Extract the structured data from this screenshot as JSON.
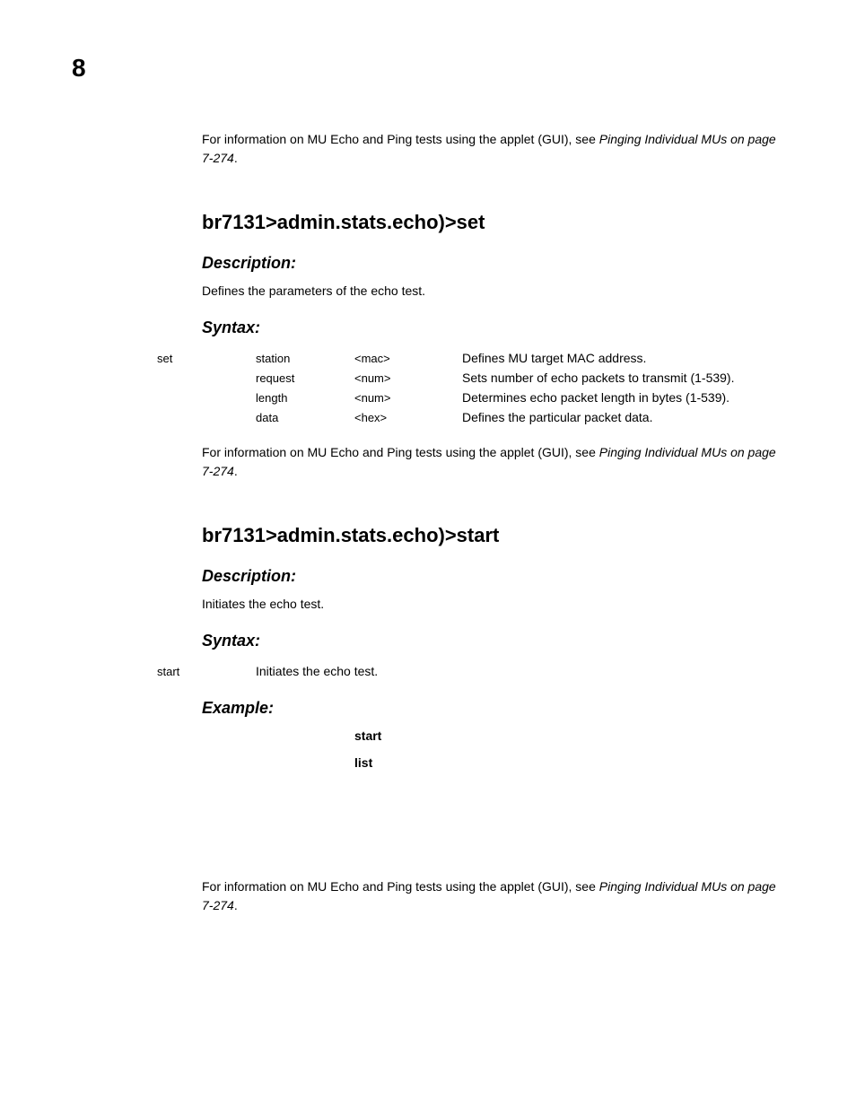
{
  "page_number": "8",
  "intro_ref": {
    "prefix": "For information on MU Echo and Ping tests using the applet (GUI), see ",
    "link": "Pinging Individual MUs on page 7-274",
    "suffix": "."
  },
  "section_set": {
    "heading": "br7131>admin.stats.echo)>set",
    "description_label": "Description:",
    "description_text": "Defines the parameters of the echo test.",
    "syntax_label": "Syntax:",
    "cmd": "set",
    "rows": [
      {
        "param": "station",
        "arg": "<mac>",
        "desc": "Defines MU target MAC address."
      },
      {
        "param": "request",
        "arg": "<num>",
        "desc": "Sets number of echo packets to transmit (1-539)."
      },
      {
        "param": "length",
        "arg": "<num>",
        "desc": "Determines echo packet length in bytes (1-539)."
      },
      {
        "param": "data",
        "arg": "<hex>",
        "desc": "Defines the particular packet data."
      }
    ],
    "ref": {
      "prefix": "For information on MU Echo and Ping tests using the applet (GUI), see ",
      "link": "Pinging Individual MUs on page 7-274",
      "suffix": "."
    }
  },
  "section_start": {
    "heading": "br7131>admin.stats.echo)>start",
    "description_label": "Description:",
    "description_text": "Initiates the echo test.",
    "syntax_label": "Syntax:",
    "cmd": "start",
    "cmd_desc": "Initiates the echo test.",
    "example_label": "Example:",
    "example_lines": [
      "start",
      "list"
    ],
    "ref": {
      "prefix": "For information on MU Echo and Ping tests using the applet (GUI), see ",
      "link": "Pinging Individual MUs on page 7-274",
      "suffix": "."
    }
  }
}
